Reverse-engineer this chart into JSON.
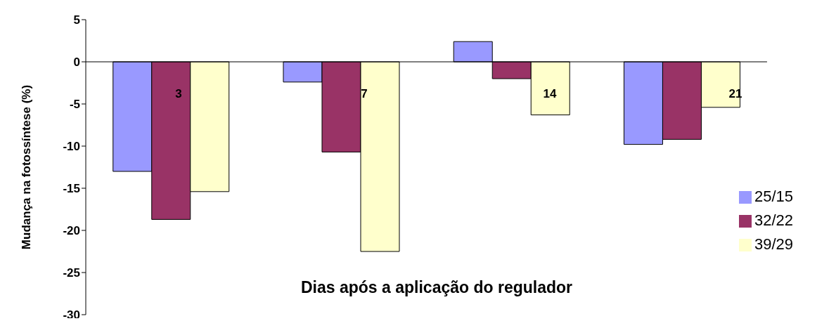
{
  "chart_data": {
    "type": "bar",
    "xlabel": "Dias após a aplicação do regulador",
    "ylabel": "Mudança na fotossíntese (%)",
    "categories": [
      "3",
      "7",
      "14",
      "21"
    ],
    "series": [
      {
        "name": "25/15",
        "color": "#9999ff",
        "values": [
          -13.0,
          -2.4,
          2.4,
          -9.8
        ]
      },
      {
        "name": "32/22",
        "color": "#993366",
        "values": [
          -18.7,
          -10.7,
          -2.0,
          -9.2
        ]
      },
      {
        "name": "39/29",
        "color": "#ffffcc",
        "values": [
          -15.4,
          -22.5,
          -6.3,
          -5.4
        ]
      }
    ],
    "ylim": [
      -30,
      5
    ],
    "yticks": [
      -30,
      -25,
      -20,
      -15,
      -10,
      -5,
      0,
      5
    ],
    "grid": false,
    "legend": "right"
  }
}
